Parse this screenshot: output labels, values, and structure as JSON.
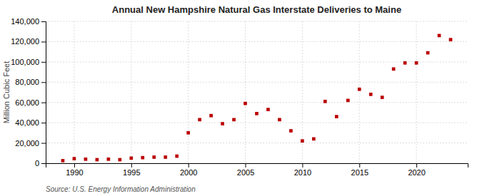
{
  "chart_data": {
    "type": "scatter",
    "title": "Annual New Hampshire Natural Gas Interstate Deliveries to Maine",
    "ylabel": "Million Cubic Feet",
    "source": "Source: U.S. Energy Information Administration",
    "x": [
      1989,
      1990,
      1991,
      1992,
      1993,
      1994,
      1995,
      1996,
      1997,
      1998,
      1999,
      2000,
      2001,
      2002,
      2003,
      2004,
      2005,
      2006,
      2007,
      2008,
      2009,
      2010,
      2011,
      2012,
      2013,
      2014,
      2015,
      2016,
      2017,
      2018,
      2019,
      2020,
      2021,
      2022,
      2023
    ],
    "values": [
      2500,
      4500,
      4000,
      3500,
      4000,
      3500,
      5000,
      5500,
      6000,
      6000,
      7000,
      30000,
      43000,
      47000,
      39000,
      43000,
      59000,
      49000,
      53000,
      43000,
      32000,
      22000,
      24000,
      61000,
      46000,
      62000,
      73000,
      68000,
      65000,
      93000,
      99000,
      99000,
      109000,
      126000,
      122000
    ],
    "color": "#bb0000",
    "marker": "square",
    "xlim": [
      1987.5,
      2024.5
    ],
    "ylim": [
      0,
      140000
    ],
    "xticks": [
      1990,
      1995,
      2000,
      2005,
      2010,
      2015,
      2020
    ],
    "yticks": [
      0,
      {
        "value": 20000,
        "label": "20,000"
      },
      {
        "value": 40000,
        "label": "40,000"
      },
      {
        "value": 60000,
        "label": "60,000"
      },
      {
        "value": 80000,
        "label": "80,000"
      },
      {
        "value": 100000,
        "label": "100,000"
      },
      {
        "value": 120000,
        "label": "120,000"
      },
      {
        "value": 140000,
        "label": "140,000"
      }
    ],
    "grid": true
  }
}
